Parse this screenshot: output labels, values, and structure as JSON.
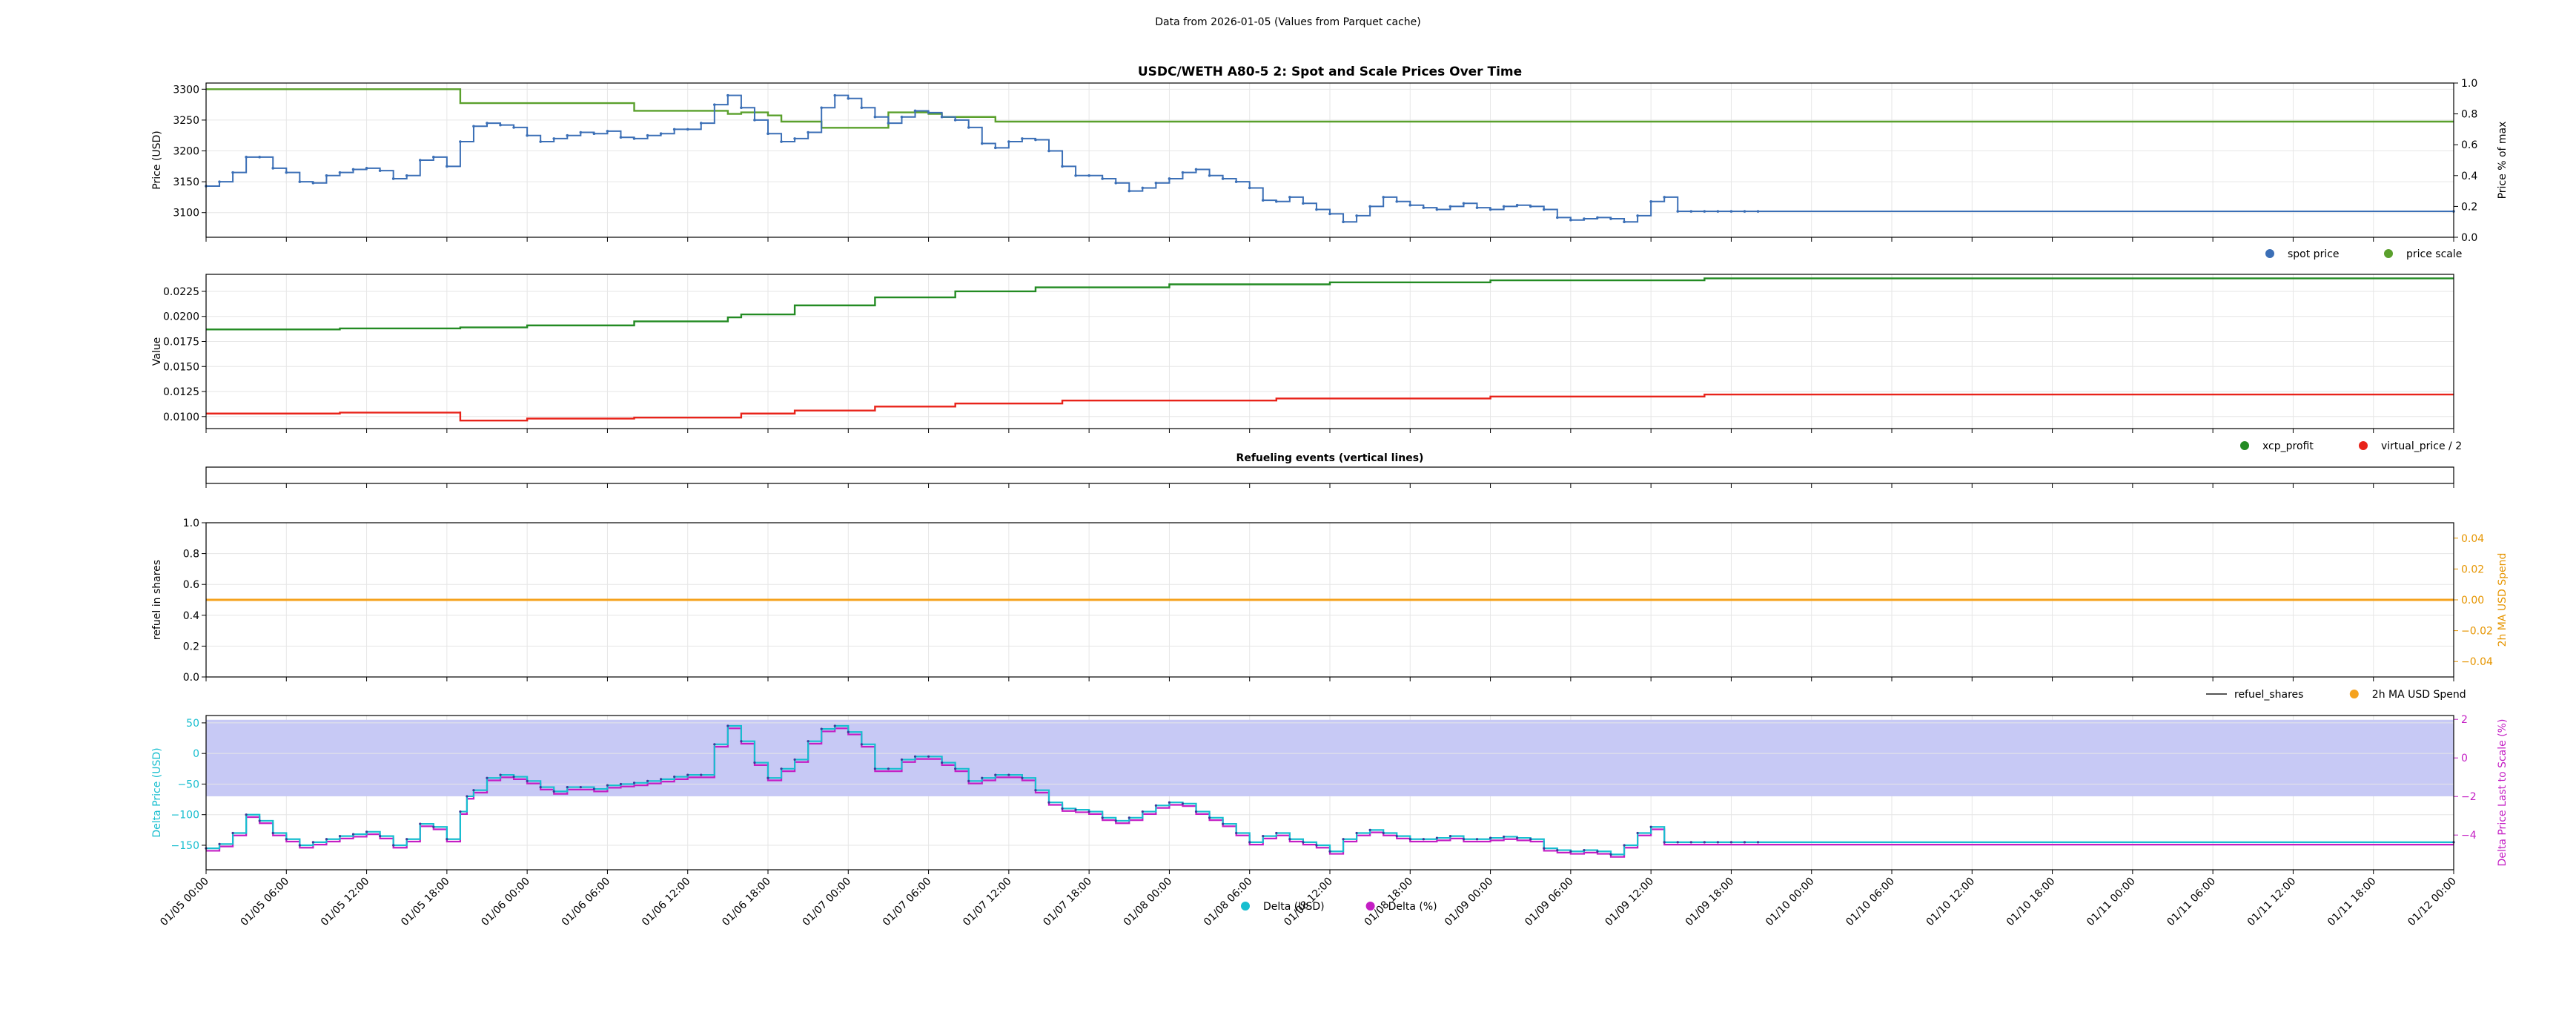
{
  "figure": {
    "suptitle": "Data from 2026-01-05 (Values from Parquet cache)"
  },
  "x_axis": {
    "ticks": [
      "01/05 00:00",
      "01/05 06:00",
      "01/05 12:00",
      "01/05 18:00",
      "01/06 00:00",
      "01/06 06:00",
      "01/06 12:00",
      "01/06 18:00",
      "01/07 00:00",
      "01/07 06:00",
      "01/07 12:00",
      "01/07 18:00",
      "01/08 00:00",
      "01/08 06:00",
      "01/08 12:00",
      "01/08 18:00",
      "01/09 00:00",
      "01/09 06:00",
      "01/09 12:00",
      "01/09 18:00",
      "01/10 00:00",
      "01/10 06:00",
      "01/10 12:00",
      "01/10 18:00",
      "01/11 00:00",
      "01/11 06:00",
      "01/11 12:00",
      "01/11 18:00",
      "01/12 00:00"
    ]
  },
  "chart_data": [
    {
      "type": "scatter",
      "title": "USDC/WETH A80-5 2: Spot and Scale Prices Over Time",
      "ylabel": "Price (USD)",
      "ylim": [
        3060,
        3310
      ],
      "yticks": [
        "3100",
        "3150",
        "3200",
        "3250",
        "3300"
      ],
      "y2label": "Price % of max",
      "y2lim": [
        0,
        1.0
      ],
      "y2ticks": [
        "0.0",
        "0.2",
        "0.4",
        "0.6",
        "0.8",
        "1.0"
      ],
      "legend": {
        "placement": "below-right",
        "entries": [
          "spot price",
          "price scale"
        ]
      },
      "grid": true,
      "colors": {
        "spot price": "#3b6fb6",
        "price scale": "#5aa02c"
      },
      "series": [
        {
          "name": "spot price",
          "axis": "left",
          "x": [
            0,
            1,
            2,
            3,
            4,
            5,
            6,
            7,
            8,
            9,
            10,
            11,
            12,
            13,
            14,
            15,
            16,
            17,
            18,
            19,
            20,
            21,
            22,
            23,
            24,
            25,
            26,
            27,
            28,
            29,
            30,
            31,
            32,
            33,
            34,
            35,
            36,
            37,
            38,
            39,
            40,
            41,
            42,
            43,
            44,
            45,
            46,
            47,
            48,
            49,
            50,
            51,
            52,
            53,
            54,
            55,
            56,
            57,
            58,
            59,
            60,
            61,
            62,
            63,
            64,
            65,
            66,
            67,
            68,
            69,
            70,
            71,
            72,
            73,
            74,
            75,
            76,
            77,
            78,
            79,
            80,
            81,
            82,
            83,
            84,
            85,
            86,
            87,
            88,
            89,
            90,
            91,
            92,
            93,
            94,
            95,
            96,
            97,
            98,
            99,
            100,
            101,
            102,
            103,
            104,
            105,
            106,
            107,
            108,
            109,
            110,
            111,
            112,
            113,
            114,
            115,
            116,
            168
          ],
          "y": [
            3143,
            3150,
            3165,
            3190,
            3190,
            3172,
            3165,
            3150,
            3148,
            3160,
            3165,
            3170,
            3172,
            3168,
            3155,
            3160,
            3185,
            3190,
            3175,
            3215,
            3240,
            3245,
            3242,
            3238,
            3225,
            3215,
            3220,
            3225,
            3230,
            3228,
            3232,
            3222,
            3220,
            3225,
            3228,
            3235,
            3235,
            3245,
            3275,
            3290,
            3270,
            3250,
            3228,
            3215,
            3220,
            3230,
            3270,
            3290,
            3285,
            3270,
            3255,
            3245,
            3255,
            3265,
            3262,
            3255,
            3250,
            3238,
            3212,
            3205,
            3215,
            3220,
            3218,
            3200,
            3175,
            3160,
            3160,
            3155,
            3148,
            3135,
            3140,
            3148,
            3155,
            3165,
            3170,
            3160,
            3155,
            3150,
            3140,
            3120,
            3118,
            3125,
            3115,
            3105,
            3098,
            3085,
            3095,
            3110,
            3125,
            3118,
            3112,
            3108,
            3105,
            3110,
            3115,
            3108,
            3105,
            3110,
            3112,
            3110,
            3105,
            3092,
            3088,
            3090,
            3092,
            3090,
            3085,
            3095,
            3118,
            3125,
            3102,
            3102,
            3102,
            3102,
            3102,
            3102,
            3102,
            3102
          ]
        },
        {
          "name": "price scale",
          "axis": "right",
          "x": [
            0,
            19,
            19,
            32,
            32,
            39,
            39,
            40,
            42,
            43,
            46,
            46,
            51,
            51,
            54,
            55,
            59,
            168
          ],
          "y": [
            0.96,
            0.96,
            0.87,
            0.87,
            0.82,
            0.82,
            0.8,
            0.81,
            0.79,
            0.75,
            0.75,
            0.71,
            0.71,
            0.81,
            0.8,
            0.78,
            0.75,
            0.75
          ]
        }
      ]
    },
    {
      "type": "line",
      "title": "",
      "ylabel": "Value",
      "ylim": [
        0.0088,
        0.0242
      ],
      "yticks": [
        "0.0100",
        "0.0125",
        "0.0150",
        "0.0175",
        "0.0200",
        "0.0225"
      ],
      "legend": {
        "placement": "below-right",
        "entries": [
          "xcp_profit",
          "virtual_price / 2"
        ]
      },
      "grid": true,
      "colors": {
        "xcp_profit": "#238b23",
        "virtual_price / 2": "#e8231a"
      },
      "series": [
        {
          "name": "xcp_profit",
          "x": [
            0,
            10,
            19,
            24,
            32,
            39,
            40,
            44,
            50,
            56,
            62,
            72,
            84,
            96,
            112,
            168
          ],
          "y": [
            0.0187,
            0.0188,
            0.0189,
            0.0191,
            0.0195,
            0.0199,
            0.0202,
            0.0211,
            0.0219,
            0.0225,
            0.0229,
            0.0232,
            0.0234,
            0.0236,
            0.0238,
            0.0238
          ]
        },
        {
          "name": "virtual_price / 2",
          "x": [
            0,
            10,
            19,
            19,
            24,
            32,
            39,
            40,
            44,
            50,
            56,
            64,
            80,
            96,
            112,
            168
          ],
          "y": [
            0.0103,
            0.0104,
            0.0105,
            0.0096,
            0.0098,
            0.0099,
            0.0099,
            0.0103,
            0.0106,
            0.011,
            0.0113,
            0.0116,
            0.0118,
            0.012,
            0.0122,
            0.0122
          ]
        }
      ]
    },
    {
      "type": "line",
      "title": "Refueling events (vertical lines)",
      "series": []
    },
    {
      "type": "line",
      "title": "",
      "ylabel": "refuel in shares",
      "ylim": [
        0,
        1.0
      ],
      "yticks": [
        "0.0",
        "0.2",
        "0.4",
        "0.6",
        "0.8",
        "1.0"
      ],
      "y2label": "2h MA USD Spend",
      "y2lim": [
        -0.05,
        0.05
      ],
      "y2ticks": [
        "−0.04",
        "−0.02",
        "0.00",
        "0.02",
        "0.04"
      ],
      "legend": {
        "placement": "below-right",
        "entries": [
          "refuel_shares",
          "2h MA USD Spend"
        ]
      },
      "grid": true,
      "colors": {
        "refuel_shares": "#555555",
        "2h MA USD Spend": "#f5a21d"
      },
      "series": [
        {
          "name": "2h MA USD Spend",
          "axis": "right",
          "x": [
            0,
            168
          ],
          "y": [
            0,
            0
          ]
        }
      ]
    },
    {
      "type": "scatter",
      "title": "",
      "ylabel": "Delta Price (USD)",
      "ylim": [
        -190,
        62
      ],
      "yticks": [
        "−150",
        "−100",
        "−50",
        "0",
        "50"
      ],
      "y2label": "Delta Price Last to Scale (%)",
      "y2lim": [
        -5.8,
        2.2
      ],
      "y2ticks": [
        "−4",
        "−2",
        "0",
        "2"
      ],
      "band": {
        "from": -70,
        "to": 55,
        "color": "#c7c9f5"
      },
      "legend": {
        "placement": "bottom-center",
        "entries": [
          "Delta (USD)",
          "Delta (%)"
        ]
      },
      "grid": true,
      "colors": {
        "Delta (USD)": "#17becf",
        "Delta (%)": "#c41ec4"
      },
      "series": [
        {
          "name": "Delta (USD)",
          "axis": "left",
          "x": [
            0,
            1,
            2,
            3,
            4,
            5,
            6,
            7,
            8,
            9,
            10,
            11,
            12,
            13,
            14,
            15,
            16,
            17,
            18,
            19,
            19.5,
            20,
            21,
            22,
            23,
            24,
            25,
            26,
            27,
            28,
            29,
            30,
            31,
            32,
            33,
            34,
            35,
            36,
            37,
            38,
            39,
            40,
            41,
            42,
            43,
            44,
            45,
            46,
            47,
            48,
            49,
            50,
            51,
            52,
            53,
            54,
            55,
            56,
            57,
            58,
            59,
            60,
            61,
            62,
            63,
            64,
            65,
            66,
            67,
            68,
            69,
            70,
            71,
            72,
            73,
            74,
            75,
            76,
            77,
            78,
            79,
            80,
            81,
            82,
            83,
            84,
            85,
            86,
            87,
            88,
            89,
            90,
            91,
            92,
            93,
            94,
            95,
            96,
            97,
            98,
            99,
            100,
            101,
            102,
            103,
            104,
            105,
            106,
            107,
            108,
            109,
            110,
            111,
            112,
            113,
            114,
            115,
            116,
            168
          ],
          "y": [
            -155,
            -148,
            -130,
            -100,
            -110,
            -130,
            -140,
            -150,
            -145,
            -140,
            -135,
            -132,
            -128,
            -135,
            -150,
            -140,
            -115,
            -120,
            -140,
            -95,
            -70,
            -60,
            -40,
            -35,
            -38,
            -45,
            -55,
            -62,
            -55,
            -55,
            -58,
            -52,
            -50,
            -48,
            -45,
            -42,
            -38,
            -35,
            -35,
            15,
            45,
            20,
            -15,
            -40,
            -25,
            -10,
            20,
            40,
            45,
            35,
            15,
            -25,
            -25,
            -10,
            -5,
            -5,
            -15,
            -25,
            -45,
            -40,
            -35,
            -35,
            -40,
            -60,
            -80,
            -90,
            -92,
            -95,
            -105,
            -110,
            -105,
            -95,
            -85,
            -80,
            -82,
            -95,
            -105,
            -115,
            -130,
            -145,
            -135,
            -130,
            -140,
            -145,
            -150,
            -160,
            -140,
            -130,
            -125,
            -130,
            -135,
            -140,
            -140,
            -138,
            -135,
            -140,
            -140,
            -138,
            -136,
            -138,
            -140,
            -155,
            -158,
            -160,
            -158,
            -160,
            -165,
            -150,
            -130,
            -120,
            -145,
            -145,
            -145,
            -145,
            -145,
            -145,
            -145,
            -145,
            -145
          ]
        },
        {
          "name": "Delta (%)",
          "axis": "right",
          "x": [
            0,
            10,
            20,
            30,
            40,
            50,
            60,
            70,
            80,
            90,
            100,
            110,
            116,
            168
          ],
          "y": [
            -4.8,
            -4.4,
            -1.9,
            -1.8,
            1.5,
            1.6,
            -1.0,
            -3.2,
            -3.8,
            -4.5,
            -4.3,
            -4.8,
            -4.5,
            -4.5
          ]
        }
      ]
    }
  ]
}
